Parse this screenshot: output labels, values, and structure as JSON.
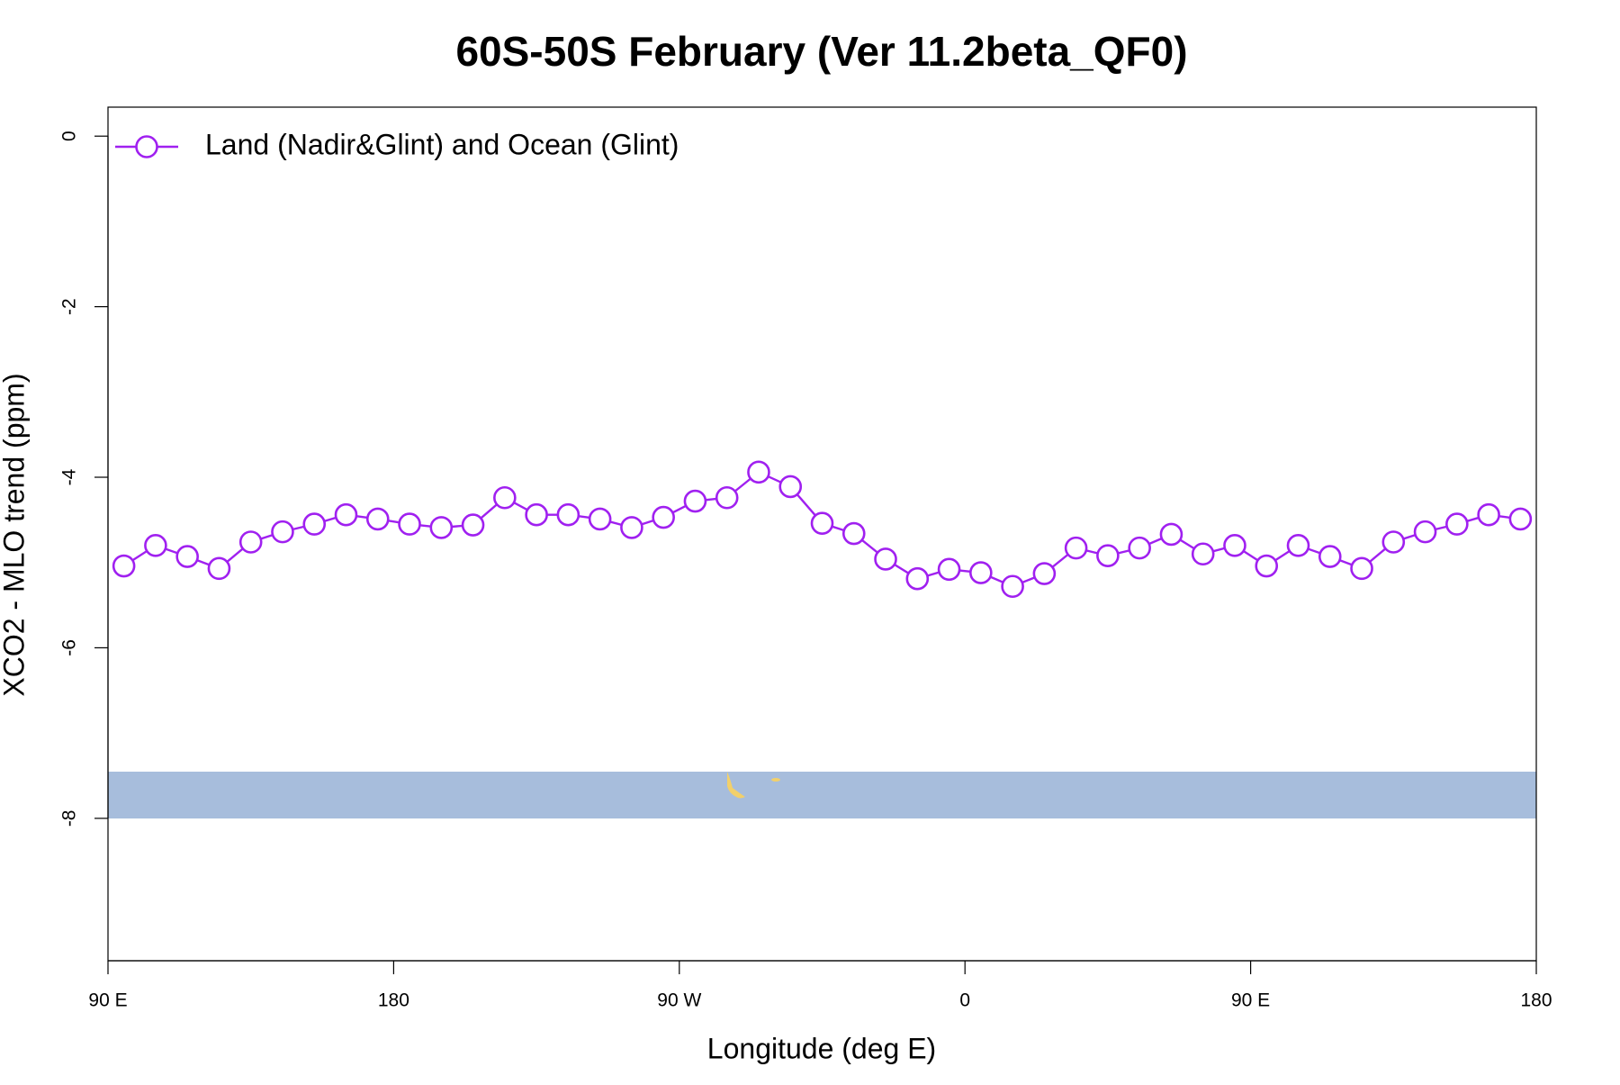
{
  "chart_data": {
    "type": "line",
    "title": "60S-50S February (Ver 11.2beta_QF0)",
    "xlabel": "Longitude (deg E)",
    "ylabel": "XCO2 - MLO trend (ppm)",
    "x": [
      95,
      105,
      115,
      125,
      135,
      145,
      155,
      165,
      175,
      185,
      195,
      205,
      215,
      225,
      235,
      245,
      255,
      265,
      275,
      285,
      295,
      305,
      315,
      325,
      335,
      345,
      355,
      365,
      375,
      385,
      395,
      405,
      415,
      425,
      435,
      445,
      455,
      465,
      475,
      485,
      495,
      505,
      515,
      525,
      535
    ],
    "series": [
      {
        "name": "Land (Nadir&Glint) and Ocean (Glint)",
        "color": "#a020f0",
        "values": [
          -5.04,
          -4.8,
          -4.93,
          -5.07,
          -4.76,
          -4.64,
          -4.55,
          -4.44,
          -4.49,
          -4.55,
          -4.59,
          -4.56,
          -4.24,
          -4.44,
          -4.44,
          -4.49,
          -4.59,
          -4.47,
          -4.28,
          -4.24,
          -3.94,
          -4.11,
          -4.54,
          -4.66,
          -4.96,
          -5.19,
          -5.08,
          -5.12,
          -5.28,
          -5.13,
          -4.83,
          -4.92,
          -4.83,
          -4.67,
          -4.9,
          -4.8,
          -5.04,
          -4.8,
          -4.93,
          -5.07,
          -4.76,
          -4.64,
          -4.55,
          -4.44,
          -4.49
        ]
      }
    ],
    "xlim": [
      90,
      540
    ],
    "ylim": [
      -9.67,
      0.34
    ],
    "xticks": [
      {
        "value": 90,
        "label": "90 E"
      },
      {
        "value": 180,
        "label": "180"
      },
      {
        "value": 270,
        "label": "90 W"
      },
      {
        "value": 360,
        "label": "0"
      },
      {
        "value": 450,
        "label": "90 E"
      },
      {
        "value": 540,
        "label": "180"
      }
    ],
    "yticks": [
      0,
      -2,
      -4,
      -6,
      -8
    ],
    "legend": "top-left"
  }
}
